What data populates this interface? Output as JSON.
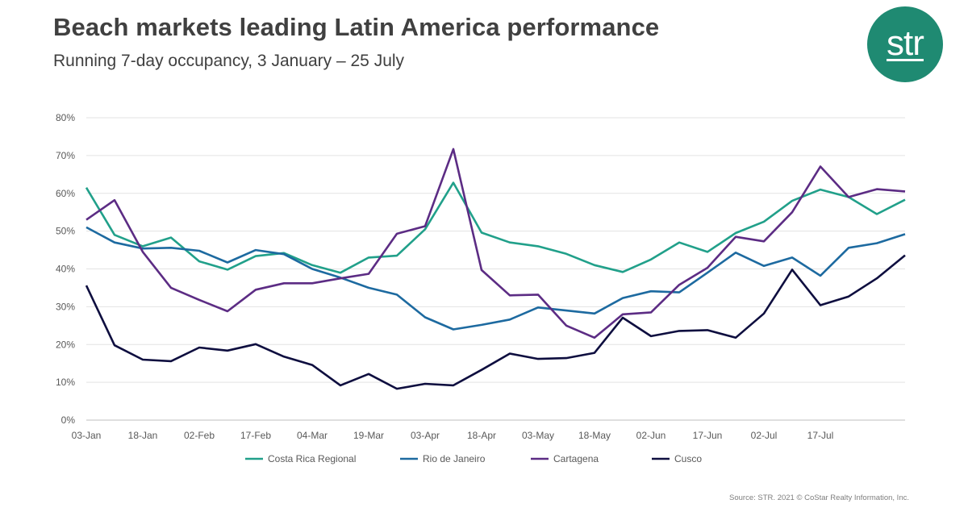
{
  "header": {
    "title": "Beach markets leading Latin America performance",
    "subtitle": "Running 7-day occupancy, 3 January – 25 July",
    "logo_text": "str"
  },
  "footer": {
    "source": "Source: STR. 2021 © CoStar Realty Information, Inc."
  },
  "chart_data": {
    "type": "line",
    "title": "Beach markets leading Latin America performance",
    "subtitle": "Running 7-day occupancy, 3 January – 25 July",
    "xlabel": "",
    "ylabel": "",
    "ylim": [
      0,
      80
    ],
    "yticks": [
      "0%",
      "10%",
      "20%",
      "30%",
      "40%",
      "50%",
      "60%",
      "70%",
      "80%"
    ],
    "x_tick_labels": [
      "03-Jan",
      "18-Jan",
      "02-Feb",
      "17-Feb",
      "04-Mar",
      "19-Mar",
      "03-Apr",
      "18-Apr",
      "03-May",
      "18-May",
      "02-Jun",
      "17-Jun",
      "02-Jul",
      "17-Jul"
    ],
    "grid": true,
    "legend_position": "bottom",
    "series": [
      {
        "name": "Costa Rica Regional",
        "color": "#21a08a",
        "values": [
          61.5,
          49,
          46,
          48.3,
          42,
          39.8,
          43.4,
          44.2,
          41,
          39,
          43,
          43.5,
          50.5,
          62.8,
          49.6,
          47,
          46,
          44,
          41,
          39.2,
          42.5,
          47,
          44.5,
          49.5,
          52.5,
          58,
          61,
          59,
          54.5,
          58.3
        ]
      },
      {
        "name": "Rio de Janeiro",
        "color": "#1d6aa0",
        "values": [
          51,
          47,
          45.4,
          45.6,
          44.8,
          41.7,
          45,
          43.9,
          40,
          37.7,
          35,
          33.2,
          27.2,
          24,
          25.2,
          26.6,
          29.8,
          29,
          28.2,
          32.3,
          34.1,
          33.8,
          39,
          44.3,
          40.8,
          43,
          38.2,
          45.6,
          46.8,
          49.2
        ]
      },
      {
        "name": "Cartagena",
        "color": "#5c2c84",
        "values": [
          53,
          58.2,
          44.5,
          35,
          31.8,
          28.8,
          34.5,
          36.2,
          36.2,
          37.5,
          38.7,
          49.3,
          51.3,
          71.7,
          39.7,
          33,
          33.2,
          25,
          21.8,
          28,
          28.5,
          35.8,
          40.3,
          48.5,
          47.3,
          55,
          67.1,
          59,
          61.1,
          60.5
        ]
      },
      {
        "name": "Cusco",
        "color": "#0e0e3f",
        "values": [
          35.6,
          19.8,
          16,
          15.6,
          19.2,
          18.4,
          20.1,
          16.8,
          14.6,
          9.2,
          12.2,
          8.3,
          9.6,
          9.2,
          13.3,
          17.6,
          16.2,
          16.4,
          17.8,
          27.1,
          22.2,
          23.6,
          23.8,
          21.8,
          28.2,
          39.8,
          30.4,
          32.7,
          37.5,
          43.6
        ]
      }
    ]
  }
}
